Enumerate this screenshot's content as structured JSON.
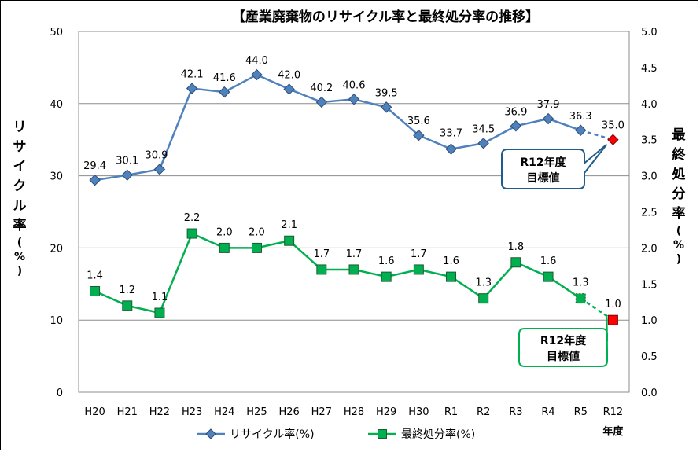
{
  "chart_data": {
    "type": "line",
    "title": "【産業廃棄物のリサイクル率と最終処分率の推移】",
    "categories": [
      "H20",
      "H21",
      "H22",
      "H23",
      "H24",
      "H25",
      "H26",
      "H27",
      "H28",
      "H29",
      "H30",
      "R1",
      "R2",
      "R3",
      "R4",
      "R5",
      "R12"
    ],
    "xlabel": "年度",
    "ylabel_left": "リサイクル率(%)",
    "ylabel_right": "最終処分率(%)",
    "ylim_left": [
      0,
      50
    ],
    "ylim_right": [
      0,
      5.0
    ],
    "yticks_left": [
      "0",
      "10",
      "20",
      "30",
      "40",
      "50"
    ],
    "yticks_right": [
      "0.0",
      "0.5",
      "1.0",
      "1.5",
      "2.0",
      "2.5",
      "3.0",
      "3.5",
      "4.0",
      "4.5",
      "5.0"
    ],
    "series": [
      {
        "name": "リサイクル率(%)",
        "axis": "left",
        "color": "#4f81bd",
        "marker_color": "#4f81bd",
        "values": [
          29.4,
          30.1,
          30.9,
          42.1,
          41.6,
          44.0,
          42.0,
          40.2,
          40.6,
          39.5,
          35.6,
          33.7,
          34.5,
          36.9,
          37.9,
          36.3,
          35.0
        ],
        "labels": [
          "29.4",
          "30.1",
          "30.9",
          "42.1",
          "41.6",
          "44.0",
          "42.0",
          "40.2",
          "40.6",
          "39.5",
          "35.6",
          "33.7",
          "34.5",
          "36.9",
          "37.9",
          "36.3",
          "35.0"
        ]
      },
      {
        "name": "最終処分率(%)",
        "axis": "right",
        "color": "#00b050",
        "marker_color": "#00b050",
        "values": [
          1.4,
          1.2,
          1.1,
          2.2,
          2.0,
          2.0,
          2.1,
          1.7,
          1.7,
          1.6,
          1.7,
          1.6,
          1.3,
          1.8,
          1.6,
          1.3,
          1.0
        ],
        "labels": [
          "1.4",
          "1.2",
          "1.1",
          "2.2",
          "2.0",
          "2.0",
          "2.1",
          "1.7",
          "1.7",
          "1.6",
          "1.7",
          "1.6",
          "1.3",
          "1.8",
          "1.6",
          "1.3",
          "1.0"
        ]
      }
    ],
    "target_color": "#ff0000",
    "annotations": [
      {
        "series": 0,
        "line1": "R12年度",
        "line2": "目標値",
        "border_color": "#1f5c8b"
      },
      {
        "series": 1,
        "line1": "R12年度",
        "line2": "目標値",
        "border_color": "#00b050"
      }
    ],
    "grid": true,
    "legend": "bottom"
  }
}
